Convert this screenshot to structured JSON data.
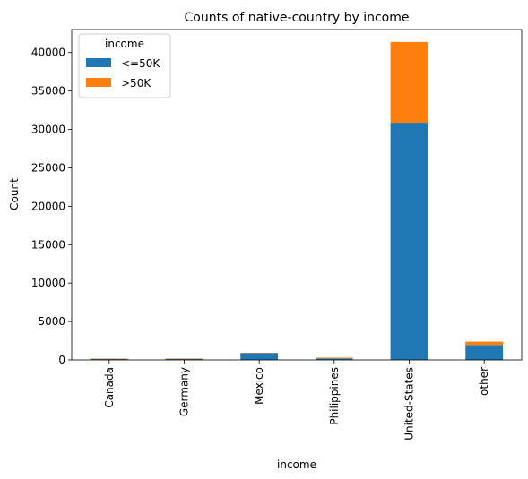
{
  "chart_data": {
    "type": "bar",
    "stacked": true,
    "title": "Counts of native-country by income",
    "xlabel": "income",
    "ylabel": "Count",
    "categories": [
      "Canada",
      "Germany",
      "Mexico",
      "Philippines",
      "United-States",
      "other"
    ],
    "series": [
      {
        "name": "<=50K",
        "color": "#1f77b4",
        "values": [
          121,
          128,
          882,
          198,
          30875,
          1950
        ]
      },
      {
        "name": ">50K",
        "color": "#ff7f0e",
        "values": [
          61,
          69,
          47,
          97,
          10507,
          430
        ]
      }
    ],
    "ylim": [
      0,
      43000
    ],
    "yticks": [
      0,
      5000,
      10000,
      15000,
      20000,
      25000,
      30000,
      35000,
      40000
    ],
    "legend": {
      "title": "income",
      "position": "top-left"
    },
    "grid": false
  }
}
